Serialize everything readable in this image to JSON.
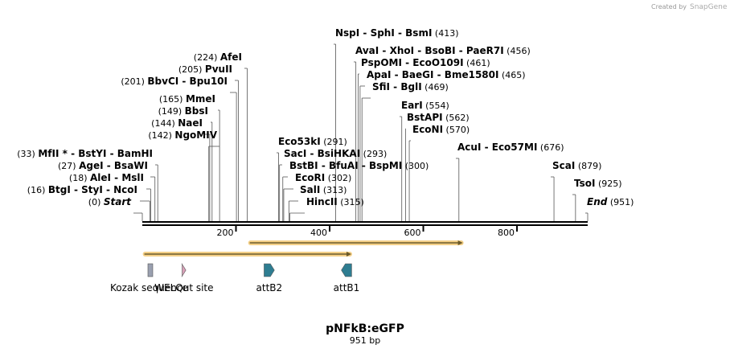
{
  "credit": {
    "prefix": "Created by",
    "brand": "SnapGene"
  },
  "plasmid": {
    "name": "pNFkB:eGFP",
    "length_label": "951 bp",
    "length": 951
  },
  "axis": {
    "ticks": [
      200,
      400,
      600,
      800
    ]
  },
  "colors": {
    "kozak": "#9aa0b0",
    "welqut": "#d9a0b8",
    "att": "#2e7d91",
    "arrow_fill": "#f0c060",
    "arrow_line": "#6b5a2a"
  },
  "sites": [
    {
      "pos": 0,
      "text": "",
      "em": "Start",
      "tail": "(0)",
      "side": "left"
    },
    {
      "pos": 16,
      "text": "BtgI  -  StyI  -  NcoI",
      "tail": "(16)",
      "side": "left"
    },
    {
      "pos": 18,
      "text": "AleI  -  MslI",
      "tail": "(18)",
      "side": "left"
    },
    {
      "pos": 27,
      "text": "AgeI  -  BsaWI",
      "tail": "(27)",
      "side": "left"
    },
    {
      "pos": 33,
      "text": "MfII *  -  BstYI  -  BamHI",
      "tail": "(33)",
      "side": "left"
    },
    {
      "pos": 142,
      "text": "NgoMIV",
      "tail": "(142)",
      "side": "left"
    },
    {
      "pos": 144,
      "text": "NaeI",
      "tail": "(144)",
      "side": "left"
    },
    {
      "pos": 149,
      "text": "BbsI",
      "tail": "(149)",
      "side": "left"
    },
    {
      "pos": 165,
      "text": "MmeI",
      "tail": "(165)",
      "side": "left"
    },
    {
      "pos": 201,
      "text": "BbvCI  -  Bpu10I",
      "tail": "(201)",
      "side": "left"
    },
    {
      "pos": 205,
      "text": "PvuII",
      "tail": "(205)",
      "side": "left"
    },
    {
      "pos": 224,
      "text": "AfeI",
      "tail": "(224)",
      "side": "left"
    },
    {
      "pos": 291,
      "text": "Eco53kI",
      "tail": "(291)",
      "side": "right"
    },
    {
      "pos": 293,
      "text": "SacI  -  BsiHKAI",
      "tail": "(293)",
      "side": "right"
    },
    {
      "pos": 300,
      "text": "BstBI  -  BfuAI  -  BspMI",
      "tail": "(300)",
      "side": "right"
    },
    {
      "pos": 302,
      "text": "EcoRI",
      "tail": "(302)",
      "side": "right"
    },
    {
      "pos": 313,
      "text": "SalI",
      "tail": "(313)",
      "side": "right"
    },
    {
      "pos": 315,
      "text": "HincII",
      "tail": "(315)",
      "side": "right"
    },
    {
      "pos": 413,
      "text": "NspI  -  SphI  -  BsmI",
      "tail": "(413)",
      "side": "right"
    },
    {
      "pos": 456,
      "text": "AvaI  -  XhoI  -  BsoBI  -  PaeR7I",
      "tail": "(456)",
      "side": "right"
    },
    {
      "pos": 461,
      "text": "PspOMI  -  EcoO109I",
      "tail": "(461)",
      "side": "right"
    },
    {
      "pos": 465,
      "text": "ApaI  -  BaeGI  -  Bme1580I",
      "tail": "(465)",
      "side": "right"
    },
    {
      "pos": 469,
      "text": "SfiI  -  BglI",
      "tail": "(469)",
      "side": "right"
    },
    {
      "pos": 554,
      "text": "EarI",
      "tail": "(554)",
      "side": "right"
    },
    {
      "pos": 562,
      "text": "BstAPI",
      "tail": "(562)",
      "side": "right"
    },
    {
      "pos": 570,
      "text": "EcoNI",
      "tail": "(570)",
      "side": "right"
    },
    {
      "pos": 676,
      "text": "AcuI  -  Eco57MI",
      "tail": "(676)",
      "side": "right"
    },
    {
      "pos": 879,
      "text": "ScaI",
      "tail": "(879)",
      "side": "right"
    },
    {
      "pos": 925,
      "text": "TsoI",
      "tail": "(925)",
      "side": "right"
    },
    {
      "pos": 951,
      "text": "",
      "em": "End",
      "tail": "(951)",
      "side": "right"
    }
  ],
  "arrows": [
    {
      "start": 226,
      "end": 686
    },
    {
      "start": 1,
      "end": 448
    }
  ],
  "features": [
    {
      "label": "Kozak sequence",
      "kind": "box",
      "start": 12,
      "end": 17,
      "color_key": "kozak"
    },
    {
      "label": "WELQut site",
      "kind": "arrow-right",
      "start": 85,
      "end": 93,
      "color_key": "welqut"
    },
    {
      "label": "attB2",
      "kind": "arrow-right",
      "start": 260,
      "end": 282,
      "color_key": "att"
    },
    {
      "label": "attB1",
      "kind": "arrow-left",
      "start": 425,
      "end": 447,
      "color_key": "att"
    }
  ]
}
